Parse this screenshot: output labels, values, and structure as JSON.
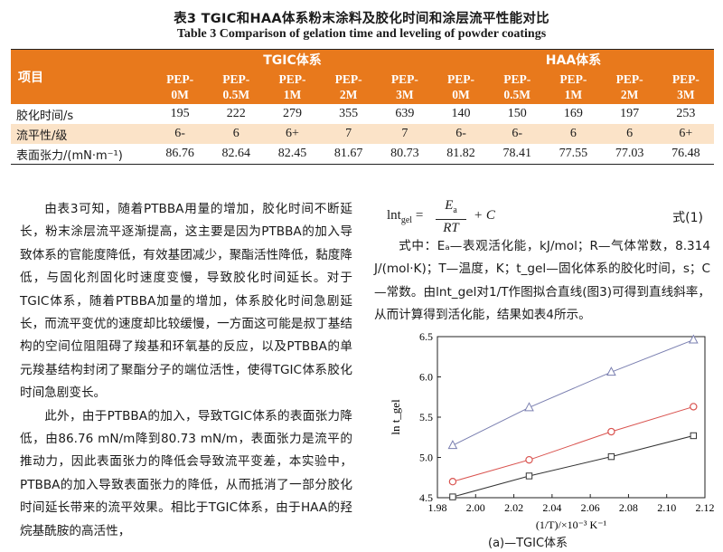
{
  "caption": {
    "cn": "表3 TGIC和HAA体系粉末涂料及胶化时间和涂层流平性能对比",
    "en": "Table 3 Comparison of gelation time and leveling of powder coatings"
  },
  "table": {
    "item_header": "项目",
    "group_tgic": "TGIC体系",
    "group_haa": "HAA体系",
    "samples": [
      [
        "PEP-",
        "0M"
      ],
      [
        "PEP-",
        "0.5M"
      ],
      [
        "PEP-",
        "1M"
      ],
      [
        "PEP-",
        "2M"
      ],
      [
        "PEP-",
        "3M"
      ],
      [
        "PEP-",
        "0M"
      ],
      [
        "PEP-",
        "0.5M"
      ],
      [
        "PEP-",
        "1M"
      ],
      [
        "PEP-",
        "2M"
      ],
      [
        "PEP-",
        "3M"
      ]
    ],
    "rows": [
      {
        "label": "胶化时间/s",
        "values": [
          "195",
          "222",
          "279",
          "355",
          "639",
          "140",
          "150",
          "169",
          "197",
          "253"
        ]
      },
      {
        "label": "流平性/级",
        "values": [
          "6-",
          "6",
          "6+",
          "7",
          "7",
          "6-",
          "6-",
          "6",
          "6",
          "6+"
        ]
      },
      {
        "label": "表面张力/(mN·m⁻¹)",
        "values": [
          "86.76",
          "82.64",
          "82.45",
          "81.67",
          "80.73",
          "81.82",
          "78.41",
          "77.55",
          "77.03",
          "76.48"
        ]
      }
    ]
  },
  "left_text": [
    "由表3可知，随着PTBBA用量的增加，胶化时间不断延长，粉末涂层流平逐渐提高，这主要是因为PTBBA的加入导致体系的官能度降低，有效基团减少，聚酯活性降低，黏度降低，与固化剂固化时速度变慢，导致胶化时间延长。对于TGIC体系，随着PTBBA加量的增加，体系胶化时间急剧延长，而流平变优的速度却比较缓慢，一方面这可能是叔丁基结构的空间位阻阻碍了羧基和环氧基的反应，以及PTBBA的单元羧基结构封闭了聚酯分子的端位活性，使得TGIC体系胶化时间急剧变长。",
    "此外，由于PTBBA的加入，导致TGIC体系的表面张力降低，由86.76 mN/m降到80.73 mN/m，表面张力是流平的推动力，因此表面张力的降低会导致流平变差，本实验中，PTBBA的加入导致表面张力的降低，从而抵消了一部分胶化时间延长带来的流平效果。相比于TGIC体系，由于HAA的羟烷基酰胺的高活性，"
  ],
  "equation": {
    "lhs": "lnt",
    "lhs_sub": "gel",
    "eq": " = ",
    "num": "E",
    "num_sub": "a",
    "den": "RT",
    "tail": " + C",
    "number": "式(1)"
  },
  "right_text": "式中：Eₐ—表观活化能，kJ/mol；R—气体常数，8.314 J/(mol·K)；T—温度，K；t_gel—固化体系的胶化时间，s；C—常数。由lnt_gel对1/T作图拟合直线(图3)可得到直线斜率，从而计算得到活化能，结果如表4所示。",
  "figure_caption": "(a)—TGIC体系",
  "chart_data": {
    "type": "line",
    "xlabel": "(1/T)/×10⁻³ K⁻¹",
    "ylabel": "ln t_gel",
    "xlim": [
      1.98,
      2.12
    ],
    "ylim": [
      4.5,
      6.5
    ],
    "x_ticks": [
      "1.98",
      "2.00",
      "2.02",
      "2.04",
      "2.06",
      "2.08",
      "2.10",
      "2.12"
    ],
    "y_ticks": [
      "4.5",
      "5.0",
      "5.5",
      "6.0",
      "6.5"
    ],
    "series": [
      {
        "marker": "triangle",
        "color": "#7a7fb0",
        "x": [
          1.988,
          2.028,
          2.071,
          2.114
        ],
        "y": [
          5.15,
          5.62,
          6.06,
          6.46
        ]
      },
      {
        "marker": "circle",
        "color": "#d9534f",
        "x": [
          1.988,
          2.028,
          2.071,
          2.114
        ],
        "y": [
          4.7,
          4.97,
          5.32,
          5.63
        ]
      },
      {
        "marker": "square",
        "color": "#333333",
        "x": [
          1.988,
          2.028,
          2.071,
          2.114
        ],
        "y": [
          4.51,
          4.77,
          5.01,
          5.27
        ]
      }
    ]
  }
}
